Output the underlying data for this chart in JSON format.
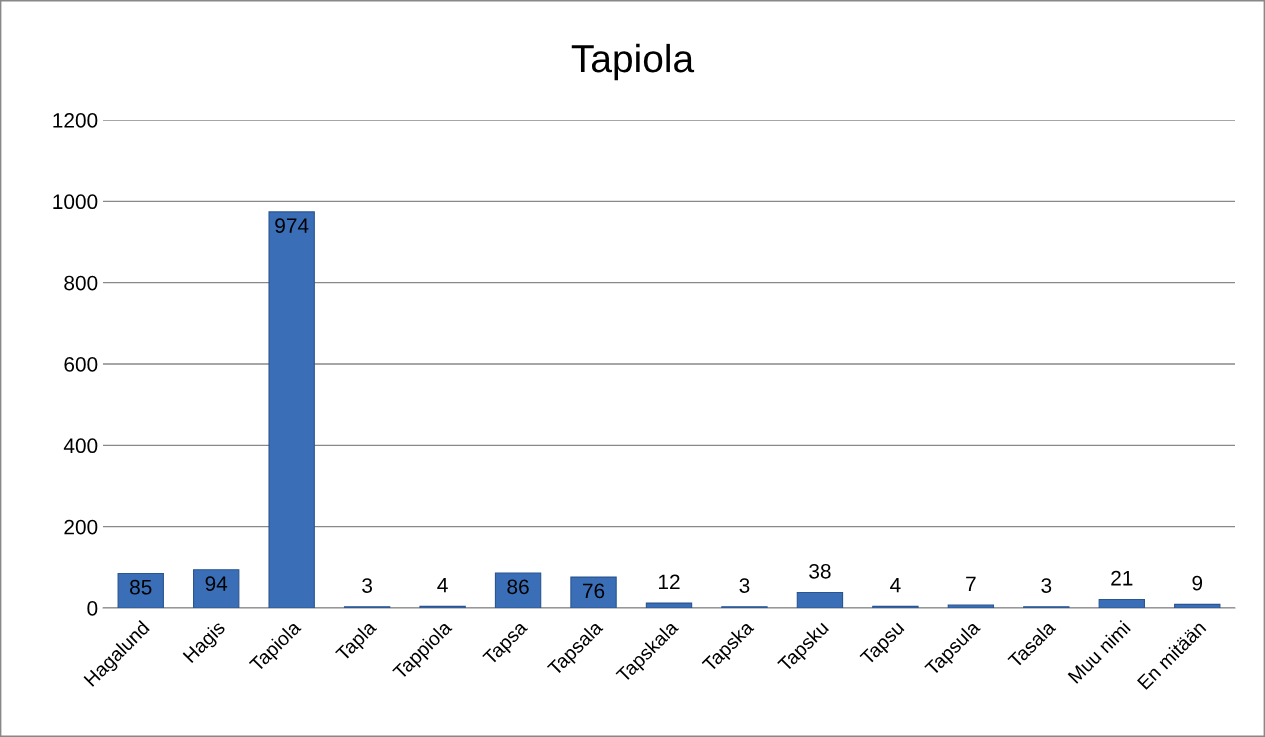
{
  "chart_data": {
    "type": "bar",
    "title": "Tapiola",
    "categories": [
      "Hagalund",
      "Hagis",
      "Tapiola",
      "Tapla",
      "Tappiola",
      "Tapsa",
      "Tapsala",
      "Tapskala",
      "Tapska",
      "Tapsku",
      "Tapsu",
      "Tapsula",
      "Tasala",
      "Muu nimi",
      "En mitään"
    ],
    "values": [
      85,
      94,
      974,
      3,
      4,
      86,
      76,
      12,
      3,
      38,
      4,
      7,
      3,
      21,
      9
    ],
    "color": "#3a6fb8",
    "ylim": [
      0,
      1200
    ],
    "yticks": [
      0,
      200,
      400,
      600,
      800,
      1000,
      1200
    ],
    "grid": "y",
    "data_labels": true
  }
}
